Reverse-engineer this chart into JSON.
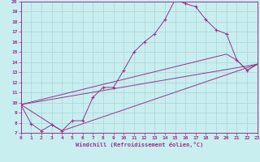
{
  "xlabel": "Windchill (Refroidissement éolien,°C)",
  "background_color": "#c8eef0",
  "grid_color": "#aad4d8",
  "line_color": "#993388",
  "xlim": [
    0,
    23
  ],
  "ylim": [
    7,
    20
  ],
  "xticks": [
    0,
    1,
    2,
    3,
    4,
    5,
    6,
    7,
    8,
    9,
    10,
    11,
    12,
    13,
    14,
    15,
    16,
    17,
    18,
    19,
    20,
    21,
    22,
    23
  ],
  "yticks": [
    7,
    8,
    9,
    10,
    11,
    12,
    13,
    14,
    15,
    16,
    17,
    18,
    19,
    20
  ],
  "series": [
    [
      0,
      9.8
    ],
    [
      1,
      7.9
    ],
    [
      2,
      7.2
    ],
    [
      3,
      7.8
    ],
    [
      4,
      7.2
    ],
    [
      5,
      8.2
    ],
    [
      6,
      8.2
    ],
    [
      7,
      10.5
    ],
    [
      8,
      11.5
    ],
    [
      9,
      11.5
    ],
    [
      10,
      13.2
    ],
    [
      11,
      15.0
    ],
    [
      12,
      16.0
    ],
    [
      13,
      16.8
    ],
    [
      14,
      18.2
    ],
    [
      15,
      20.2
    ],
    [
      16,
      19.8
    ],
    [
      17,
      19.5
    ],
    [
      18,
      18.2
    ],
    [
      19,
      17.2
    ],
    [
      20,
      16.8
    ],
    [
      21,
      14.2
    ],
    [
      22,
      13.2
    ],
    [
      23,
      13.8
    ]
  ],
  "line2": [
    [
      0,
      9.8
    ],
    [
      4,
      7.2
    ],
    [
      23,
      13.8
    ]
  ],
  "line3": [
    [
      0,
      9.8
    ],
    [
      23,
      13.8
    ]
  ],
  "line4": [
    [
      0,
      9.8
    ],
    [
      20,
      14.8
    ],
    [
      21,
      14.2
    ],
    [
      22,
      13.2
    ],
    [
      23,
      13.8
    ]
  ]
}
